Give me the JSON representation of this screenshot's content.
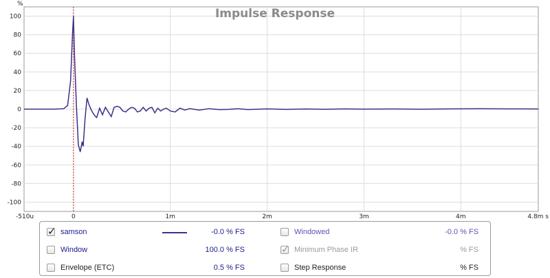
{
  "chart_data": {
    "type": "line",
    "title": "Impulse Response",
    "ylabel": "%",
    "ylim": [
      -110,
      110
    ],
    "y_ticks": [
      100,
      80,
      60,
      40,
      20,
      0,
      -20,
      -40,
      -60,
      -80,
      -100
    ],
    "xlim": [
      -0.00051,
      0.0048
    ],
    "x_ticks": [
      {
        "value": -0.00051,
        "label": "-510u"
      },
      {
        "value": 0,
        "label": "0"
      },
      {
        "value": 0.001,
        "label": "1m"
      },
      {
        "value": 0.002,
        "label": "2m"
      },
      {
        "value": 0.003,
        "label": "3m"
      },
      {
        "value": 0.004,
        "label": "4m"
      },
      {
        "value": 0.0048,
        "label": "4.8m s"
      }
    ],
    "grid": true,
    "marker_x": 0,
    "series": [
      {
        "name": "samson",
        "color": "#3c3088",
        "x": [
          -0.00051,
          -0.0004,
          -0.0003,
          -0.0002,
          -0.0001,
          -6e-05,
          -3e-05,
          -1e-05,
          0,
          1e-05,
          3e-05,
          5e-05,
          7e-05,
          9e-05,
          0.0001,
          0.00012,
          0.00014,
          0.00016,
          0.00018,
          0.0002,
          0.00022,
          0.00024,
          0.00027,
          0.0003,
          0.00033,
          0.00036,
          0.00039,
          0.00042,
          0.00045,
          0.00048,
          0.00051,
          0.00054,
          0.00057,
          0.0006,
          0.00063,
          0.00066,
          0.00069,
          0.00072,
          0.00075,
          0.00078,
          0.00081,
          0.00084,
          0.00087,
          0.0009,
          0.00093,
          0.00096,
          0.001,
          0.00105,
          0.0011,
          0.00115,
          0.0012,
          0.0013,
          0.0014,
          0.0015,
          0.0016,
          0.0017,
          0.0018,
          0.002,
          0.0022,
          0.0024,
          0.0026,
          0.0028,
          0.003,
          0.0033,
          0.0036,
          0.0039,
          0.0042,
          0.0045,
          0.0048
        ],
        "y": [
          0,
          0,
          0,
          0,
          0.5,
          4,
          30,
          80,
          100,
          60,
          5,
          -38,
          -46,
          -35,
          -40,
          -10,
          12,
          5,
          0,
          -4,
          -7,
          -9,
          1,
          -6,
          2,
          -3,
          -8,
          2,
          3,
          2,
          -2,
          -3,
          0,
          2,
          1,
          -3,
          -2,
          2,
          -2,
          1,
          2,
          -4,
          1,
          -2,
          0,
          1,
          -2,
          -3,
          1,
          -1,
          0.5,
          -1,
          0.5,
          -0.5,
          -0.3,
          0.5,
          -0.5,
          0.3,
          -0.3,
          0.2,
          -0.2,
          0.3,
          0,
          0.2,
          -0.1,
          0.3,
          0.5,
          0.3,
          0.2
        ]
      }
    ]
  },
  "legend": {
    "samson": {
      "label": "samson",
      "checked": true,
      "value": "-0.0 % FS"
    },
    "window": {
      "label": "Window",
      "checked": false,
      "value": "100.0 % FS"
    },
    "envelope": {
      "label": "Envelope (ETC)",
      "checked": false,
      "value": "0.5 % FS"
    },
    "windowed": {
      "label": "Windowed",
      "checked": false,
      "value": "-0.0 % FS"
    },
    "min_phase": {
      "label": "Minimum Phase IR",
      "checked": true,
      "value": "% FS"
    },
    "step": {
      "label": "Step Response",
      "checked": false,
      "value": "% FS"
    }
  }
}
